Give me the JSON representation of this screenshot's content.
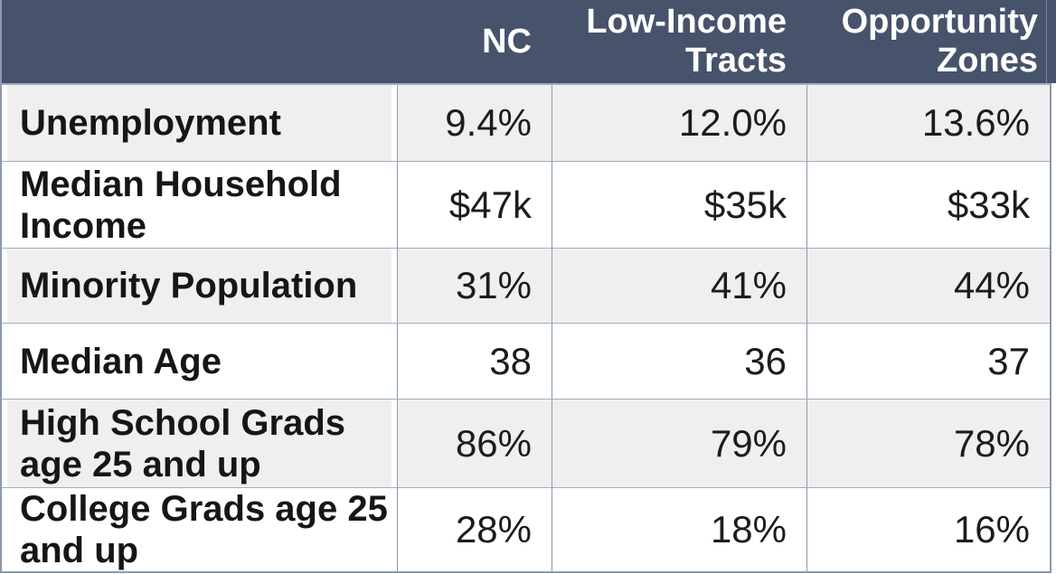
{
  "table": {
    "column_headers": [
      "",
      "NC",
      "Low-Income Tracts",
      "Opportunity Zones"
    ],
    "rows": [
      {
        "label": "Unemployment",
        "values": [
          "9.4%",
          "12.0%",
          "13.6%"
        ]
      },
      {
        "label": "Median Household Income",
        "values": [
          "$47k",
          "$35k",
          "$33k"
        ]
      },
      {
        "label": "Minority Population",
        "values": [
          "31%",
          "41%",
          "44%"
        ]
      },
      {
        "label": "Median Age",
        "values": [
          "38",
          "36",
          "37"
        ]
      },
      {
        "label": "High School Grads age 25 and up",
        "values": [
          "86%",
          "79%",
          "78%"
        ]
      },
      {
        "label": "College Grads age 25 and up",
        "values": [
          "28%",
          "18%",
          "16%"
        ]
      }
    ]
  },
  "chart_data": {
    "type": "table",
    "columns": [
      "NC",
      "Low-Income Tracts",
      "Opportunity Zones"
    ],
    "row_labels": [
      "Unemployment",
      "Median Household Income",
      "Minority Population",
      "Median Age",
      "High School Grads age 25 and up",
      "College Grads age 25 and up"
    ],
    "series": [
      {
        "name": "NC",
        "values": [
          "9.4%",
          "$47k",
          "31%",
          "38",
          "86%",
          "28%"
        ]
      },
      {
        "name": "Low-Income Tracts",
        "values": [
          "12.0%",
          "$35k",
          "41%",
          "36",
          "79%",
          "18%"
        ]
      },
      {
        "name": "Opportunity Zones",
        "values": [
          "13.6%",
          "$33k",
          "44%",
          "37",
          "78%",
          "16%"
        ]
      }
    ]
  },
  "colors": {
    "header_bg": "#46536B",
    "header_text": "#FFFFFF",
    "stripe_row_bg": "#EFEFEF",
    "plain_row_bg": "#FFFFFF",
    "grid_border": "#8A99B0",
    "body_text": "#1C1C1C"
  }
}
